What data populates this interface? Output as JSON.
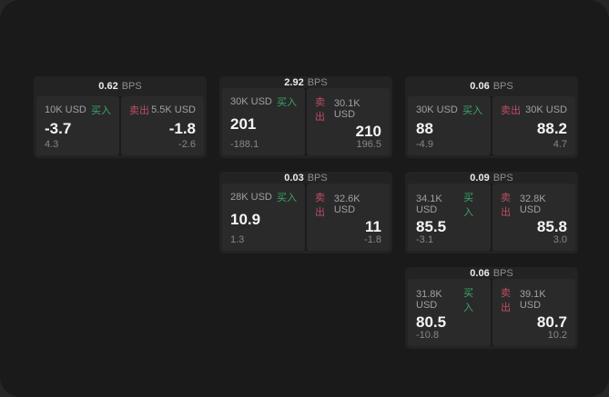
{
  "labels": {
    "buy": "买入",
    "sell": "卖出",
    "bps": "BPS"
  },
  "colors": {
    "buy": "#3ba568",
    "sell": "#bf4d63",
    "panel_background": "#1a1a1a",
    "card_background": "#232323",
    "cell_background": "#2a2a2a"
  },
  "cards": [
    {
      "row": 1,
      "col": 1,
      "bps": "0.62",
      "buy": {
        "amount": "10K USD",
        "value": "-3.7",
        "sub": "4.3"
      },
      "sell": {
        "amount": "5.5K USD",
        "value": "-1.8",
        "sub": "-2.6"
      }
    },
    {
      "row": 1,
      "col": 2,
      "bps": "2.92",
      "buy": {
        "amount": "30K USD",
        "value": "201",
        "sub": "-188.1"
      },
      "sell": {
        "amount": "30.1K USD",
        "value": "210",
        "sub": "196.5"
      }
    },
    {
      "row": 1,
      "col": 3,
      "bps": "0.06",
      "buy": {
        "amount": "30K USD",
        "value": "88",
        "sub": "-4.9"
      },
      "sell": {
        "amount": "30K USD",
        "value": "88.2",
        "sub": "4.7"
      }
    },
    {
      "row": 2,
      "col": 2,
      "bps": "0.03",
      "buy": {
        "amount": "28K USD",
        "value": "10.9",
        "sub": "1.3"
      },
      "sell": {
        "amount": "32.6K USD",
        "value": "11",
        "sub": "-1.8"
      }
    },
    {
      "row": 2,
      "col": 3,
      "bps": "0.09",
      "buy": {
        "amount": "34.1K USD",
        "value": "85.5",
        "sub": "-3.1"
      },
      "sell": {
        "amount": "32.8K USD",
        "value": "85.8",
        "sub": "3.0"
      }
    },
    {
      "row": 3,
      "col": 3,
      "bps": "0.06",
      "buy": {
        "amount": "31.8K USD",
        "value": "80.5",
        "sub": "-10.8"
      },
      "sell": {
        "amount": "39.1K USD",
        "value": "80.7",
        "sub": "10.2"
      }
    }
  ]
}
